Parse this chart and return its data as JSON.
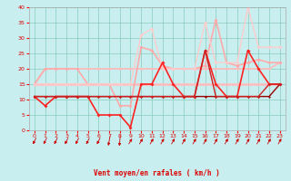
{
  "xlabel": "Vent moyen/en rafales ( km/h )",
  "xlim": [
    -0.5,
    23.5
  ],
  "ylim": [
    0,
    40
  ],
  "xticks": [
    0,
    1,
    2,
    3,
    4,
    5,
    6,
    7,
    8,
    9,
    10,
    11,
    12,
    13,
    14,
    15,
    16,
    17,
    18,
    19,
    20,
    21,
    22,
    23
  ],
  "yticks": [
    0,
    5,
    10,
    15,
    20,
    25,
    30,
    35,
    40
  ],
  "bg_color": "#c8eef0",
  "grid_color": "#88ccbb",
  "lines": [
    {
      "x": [
        0,
        1,
        2,
        3,
        4,
        5,
        6,
        7,
        8,
        9,
        10,
        11,
        12,
        13,
        14,
        15,
        16,
        17,
        18,
        19,
        20,
        21,
        22,
        23
      ],
      "y": [
        15,
        15,
        15,
        15,
        15,
        15,
        15,
        15,
        15,
        15,
        15,
        15,
        15,
        15,
        15,
        15,
        15,
        15,
        15,
        15,
        15,
        15,
        15,
        15
      ],
      "color": "#ffbbbb",
      "lw": 1.8,
      "marker": "D",
      "ms": 1.8
    },
    {
      "x": [
        0,
        1,
        2,
        3,
        4,
        5,
        6,
        7,
        8,
        9,
        10,
        11,
        12,
        13,
        14,
        15,
        16,
        17,
        18,
        19,
        20,
        21,
        22,
        23
      ],
      "y": [
        15,
        20,
        20,
        20,
        20,
        20,
        20,
        20,
        20,
        20,
        20,
        20,
        20,
        20,
        20,
        20,
        20,
        20,
        20,
        20,
        20,
        20,
        20,
        22
      ],
      "color": "#ffbbbb",
      "lw": 1.2,
      "marker": "D",
      "ms": 1.8
    },
    {
      "x": [
        0,
        1,
        2,
        3,
        4,
        5,
        6,
        7,
        8,
        9,
        10,
        11,
        12,
        13,
        14,
        15,
        16,
        17,
        18,
        19,
        20,
        21,
        22,
        23
      ],
      "y": [
        15,
        20,
        20,
        20,
        20,
        15,
        15,
        15,
        8,
        8,
        27,
        26,
        21,
        20,
        20,
        20,
        21,
        36,
        22,
        21,
        22,
        23,
        22,
        22
      ],
      "color": "#ffaaaa",
      "lw": 1.2,
      "marker": "D",
      "ms": 2.0
    },
    {
      "x": [
        0,
        1,
        2,
        3,
        4,
        5,
        6,
        7,
        8,
        9,
        10,
        11,
        12,
        13,
        14,
        15,
        16,
        17,
        18,
        19,
        20,
        21,
        22,
        23
      ],
      "y": [
        15,
        15,
        15,
        15,
        15,
        15,
        15,
        15,
        15,
        15,
        31,
        33,
        20,
        20,
        20,
        20,
        35,
        22,
        22,
        22,
        40,
        27,
        27,
        27
      ],
      "color": "#ffcccc",
      "lw": 1.0,
      "marker": "D",
      "ms": 2.0
    },
    {
      "x": [
        0,
        1,
        2,
        3,
        4,
        5,
        6,
        7,
        8,
        9,
        10,
        11,
        12,
        13,
        14,
        15,
        16,
        17,
        18,
        19,
        20,
        21,
        22,
        23
      ],
      "y": [
        11,
        8,
        11,
        11,
        11,
        11,
        5,
        5,
        5,
        1,
        15,
        15,
        22,
        15,
        11,
        11,
        26,
        15,
        11,
        11,
        26,
        20,
        15,
        15
      ],
      "color": "#ff2222",
      "lw": 1.2,
      "marker": "D",
      "ms": 2.0
    },
    {
      "x": [
        0,
        1,
        2,
        3,
        4,
        5,
        6,
        7,
        8,
        9,
        10,
        11,
        12,
        13,
        14,
        15,
        16,
        17,
        18,
        19,
        20,
        21,
        22,
        23
      ],
      "y": [
        11,
        11,
        11,
        11,
        11,
        11,
        11,
        11,
        11,
        11,
        11,
        11,
        11,
        11,
        11,
        11,
        11,
        11,
        11,
        11,
        11,
        11,
        11,
        15
      ],
      "color": "#990000",
      "lw": 1.0,
      "marker": "D",
      "ms": 1.5
    },
    {
      "x": [
        0,
        1,
        2,
        3,
        4,
        5,
        6,
        7,
        8,
        9,
        10,
        11,
        12,
        13,
        14,
        15,
        16,
        17,
        18,
        19,
        20,
        21,
        22,
        23
      ],
      "y": [
        11,
        11,
        11,
        11,
        11,
        11,
        11,
        11,
        11,
        11,
        11,
        11,
        11,
        11,
        11,
        11,
        26,
        11,
        11,
        11,
        11,
        11,
        15,
        15
      ],
      "color": "#cc2222",
      "lw": 1.0,
      "marker": "D",
      "ms": 1.5
    }
  ],
  "arrows": {
    "x": [
      0,
      1,
      2,
      3,
      4,
      5,
      6,
      7,
      8,
      9,
      10,
      11,
      12,
      13,
      14,
      15,
      16,
      17,
      18,
      19,
      20,
      21,
      22,
      23
    ],
    "angles_deg": [
      225,
      225,
      225,
      225,
      225,
      225,
      225,
      200,
      190,
      50,
      50,
      50,
      50,
      50,
      50,
      50,
      50,
      50,
      50,
      50,
      50,
      50,
      50,
      50
    ]
  }
}
